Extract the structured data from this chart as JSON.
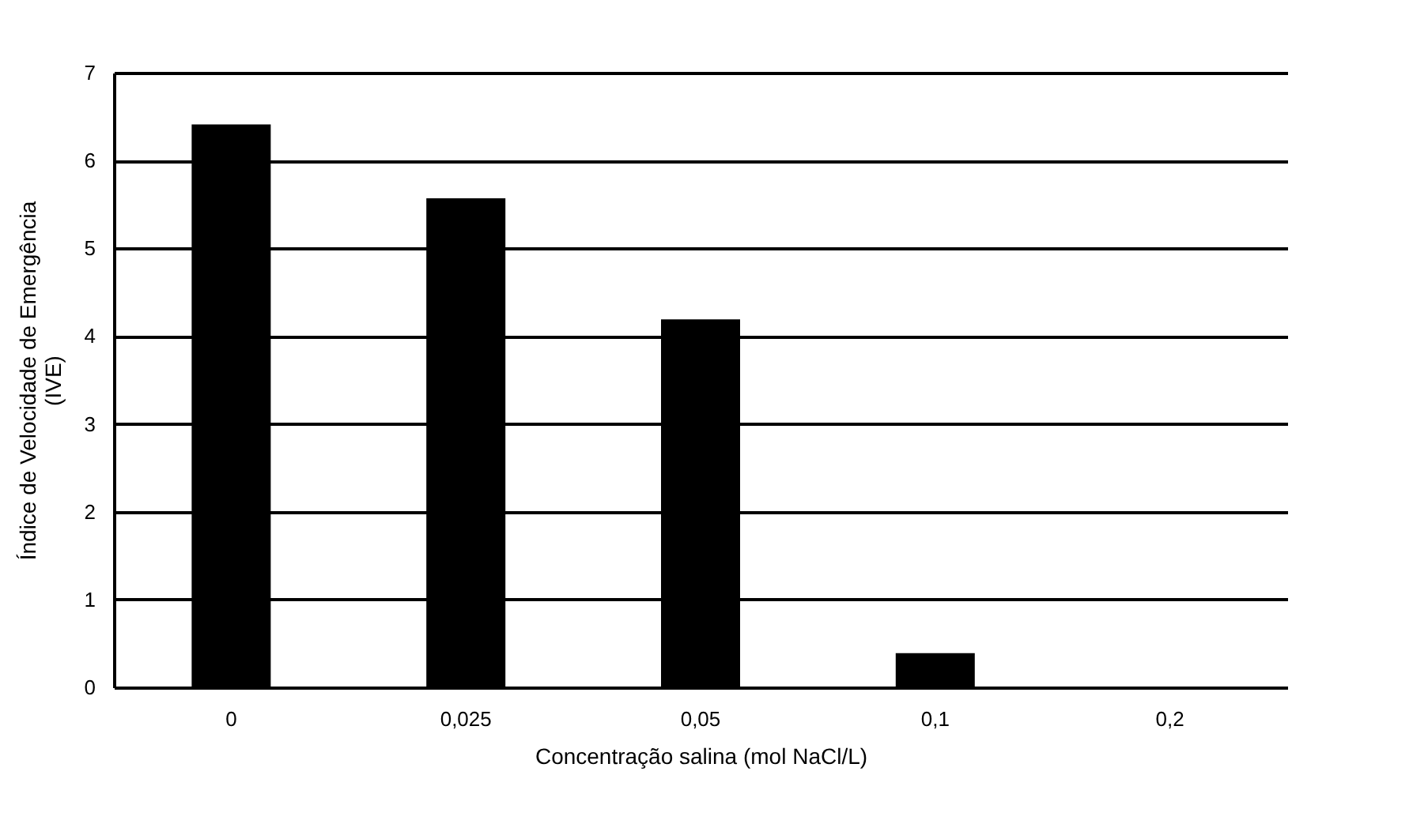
{
  "chart_data": {
    "type": "bar",
    "xlabel": "Concentração salina (mol NaCl/L)",
    "ylabel": [
      "Índice de Velocidade de Emergência",
      "(IVE)"
    ],
    "categories": [
      "0",
      "0,025",
      "0,05",
      "0,1",
      "0,2"
    ],
    "values": [
      6.41,
      5.57,
      4.19,
      0.39,
      0
    ],
    "color": "#000000",
    "ylim": [
      0,
      7
    ],
    "yticks": [
      0,
      1,
      2,
      3,
      4,
      5,
      6,
      7
    ],
    "grid": "y"
  }
}
